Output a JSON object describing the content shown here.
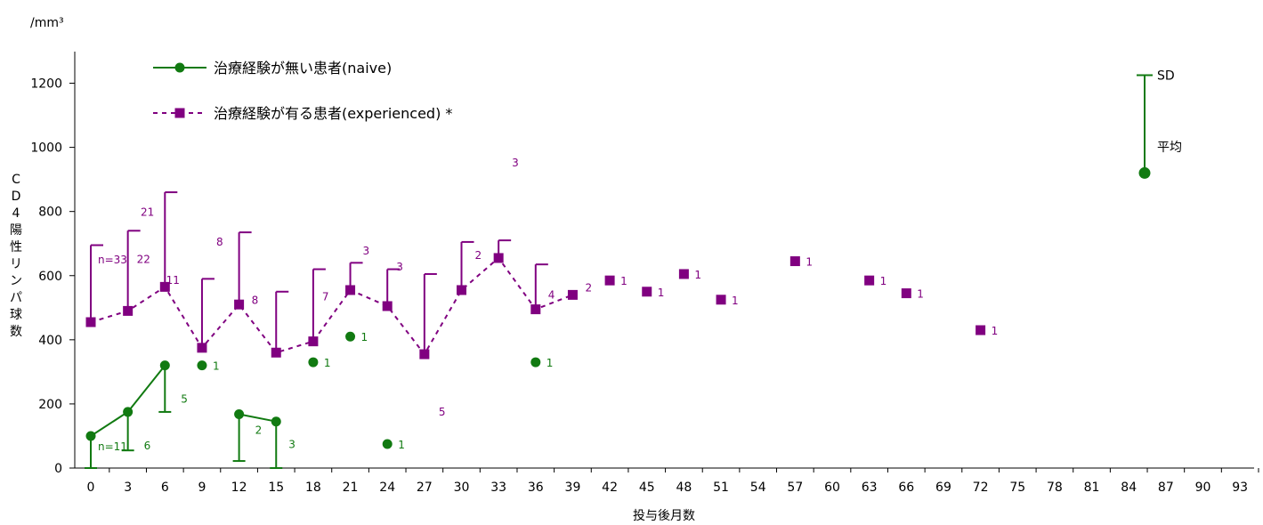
{
  "chart_data": {
    "type": "line",
    "unit_label": "/mm³",
    "xlabel": "投与後月数",
    "ylabel": "CD4陽性リンパ球数",
    "ylim": [
      0,
      1300
    ],
    "yticks": [
      0,
      200,
      400,
      600,
      800,
      1000,
      1200
    ],
    "categories": [
      "0",
      "3",
      "6",
      "9",
      "12",
      "15",
      "18",
      "21",
      "24",
      "27",
      "30",
      "33",
      "36",
      "39",
      "42",
      "45",
      "48",
      "51",
      "54",
      "57",
      "60",
      "63",
      "66",
      "69",
      "72",
      "75",
      "78",
      "81",
      "84",
      "87",
      "90",
      "93"
    ],
    "grid": false,
    "legend_position": "top-left",
    "legend_key": {
      "sd_label": "SD",
      "mean_label": "平均",
      "mean_value": 920,
      "sd_top": 1225
    },
    "series": [
      {
        "name": "治療経験が無い患者(naive)",
        "color": "#117a11",
        "marker": "circle",
        "line": "solid",
        "points": [
          {
            "month": 0,
            "mean": 100,
            "sd_low": 0,
            "n": "n=11"
          },
          {
            "month": 3,
            "mean": 175,
            "sd_low": 55,
            "n": "6"
          },
          {
            "month": 6,
            "mean": 320,
            "sd_low": 175,
            "n": "5"
          },
          {
            "month": 9,
            "mean": 320,
            "n": "1",
            "isolated": true
          },
          {
            "month": 12,
            "mean": 168,
            "sd_low": 22,
            "n": "2",
            "segment_start": true
          },
          {
            "month": 15,
            "mean": 145,
            "sd_low": 0,
            "n": "3"
          },
          {
            "month": 18,
            "mean": 330,
            "n": "1",
            "isolated": true
          },
          {
            "month": 21,
            "mean": 410,
            "n": "1",
            "isolated": true
          },
          {
            "month": 24,
            "mean": 75,
            "n": "1",
            "isolated": true
          },
          {
            "month": 36,
            "mean": 330,
            "n": "1",
            "isolated": true
          }
        ]
      },
      {
        "name": "治療経験が有る患者(experienced) *",
        "color": "#800080",
        "marker": "square",
        "line": "dashed",
        "points": [
          {
            "month": 0,
            "mean": 455,
            "sd_high": 695,
            "n": "n=33"
          },
          {
            "month": 3,
            "mean": 490,
            "sd_high": 740,
            "n": "22"
          },
          {
            "month": 6,
            "mean": 565,
            "sd_high": 860,
            "n": "21"
          },
          {
            "month": 9,
            "mean": 375,
            "sd_high": 590,
            "n": "11"
          },
          {
            "month": 12,
            "mean": 510,
            "sd_high": 735,
            "n": "8"
          },
          {
            "month": 15,
            "mean": 360,
            "sd_high": 550,
            "n": "8"
          },
          {
            "month": 18,
            "mean": 395,
            "sd_high": 620,
            "n": "7"
          },
          {
            "month": 21,
            "mean": 555,
            "sd_high": 640,
            "n": "3"
          },
          {
            "month": 24,
            "mean": 505,
            "sd_high": 620,
            "n": "3"
          },
          {
            "month": 27,
            "mean": 355,
            "sd_high": 605,
            "n": "5"
          },
          {
            "month": 30,
            "mean": 555,
            "sd_high": 705,
            "n": "2"
          },
          {
            "month": 33,
            "mean": 655,
            "sd_high": 710,
            "n": "3"
          },
          {
            "month": 36,
            "mean": 495,
            "sd_high": 635,
            "n": "4"
          },
          {
            "month": 39,
            "mean": 540,
            "n": "2"
          },
          {
            "month": 42,
            "mean": 585,
            "n": "1",
            "isolated": true
          },
          {
            "month": 45,
            "mean": 550,
            "n": "1",
            "isolated": true
          },
          {
            "month": 48,
            "mean": 605,
            "n": "1",
            "isolated": true
          },
          {
            "month": 51,
            "mean": 525,
            "n": "1",
            "isolated": true
          },
          {
            "month": 57,
            "mean": 645,
            "n": "1",
            "isolated": true
          },
          {
            "month": 63,
            "mean": 585,
            "n": "1",
            "isolated": true
          },
          {
            "month": 66,
            "mean": 545,
            "n": "1",
            "isolated": true
          },
          {
            "month": 72,
            "mean": 430,
            "n": "1",
            "isolated": true
          }
        ]
      }
    ]
  }
}
